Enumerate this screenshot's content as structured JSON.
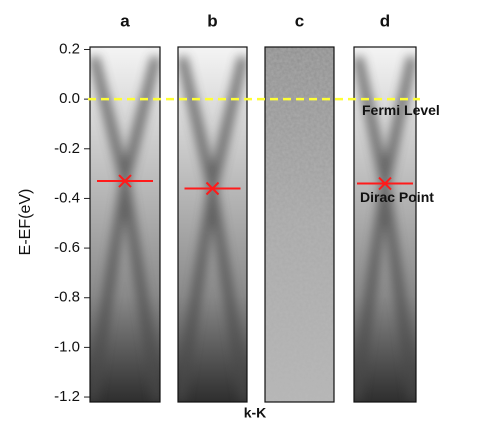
{
  "chart_data": {
    "type": "panels",
    "y_label": "E-EF(eV)",
    "x_label": "k-K",
    "ylim": [
      -1.22,
      0.21
    ],
    "yticks": [
      0.2,
      {
        "value": 0,
        "label": "0.0"
      },
      -0.2,
      -0.4,
      -0.6,
      -0.8,
      {
        "value": -1,
        "label": "-1.0"
      },
      -1.2
    ],
    "fermi_level": 0,
    "fermi_color": "#ffff33",
    "marker_color": "#ff1a1a",
    "panels": [
      {
        "label": "a",
        "dirac_point": -0.33
      },
      {
        "label": "b",
        "dirac_point": -0.36
      },
      {
        "label": "c",
        "dirac_point": null
      },
      {
        "label": "d",
        "dirac_point": -0.34
      }
    ],
    "annotations": [
      "Fermi Level",
      "Dirac Point"
    ]
  }
}
